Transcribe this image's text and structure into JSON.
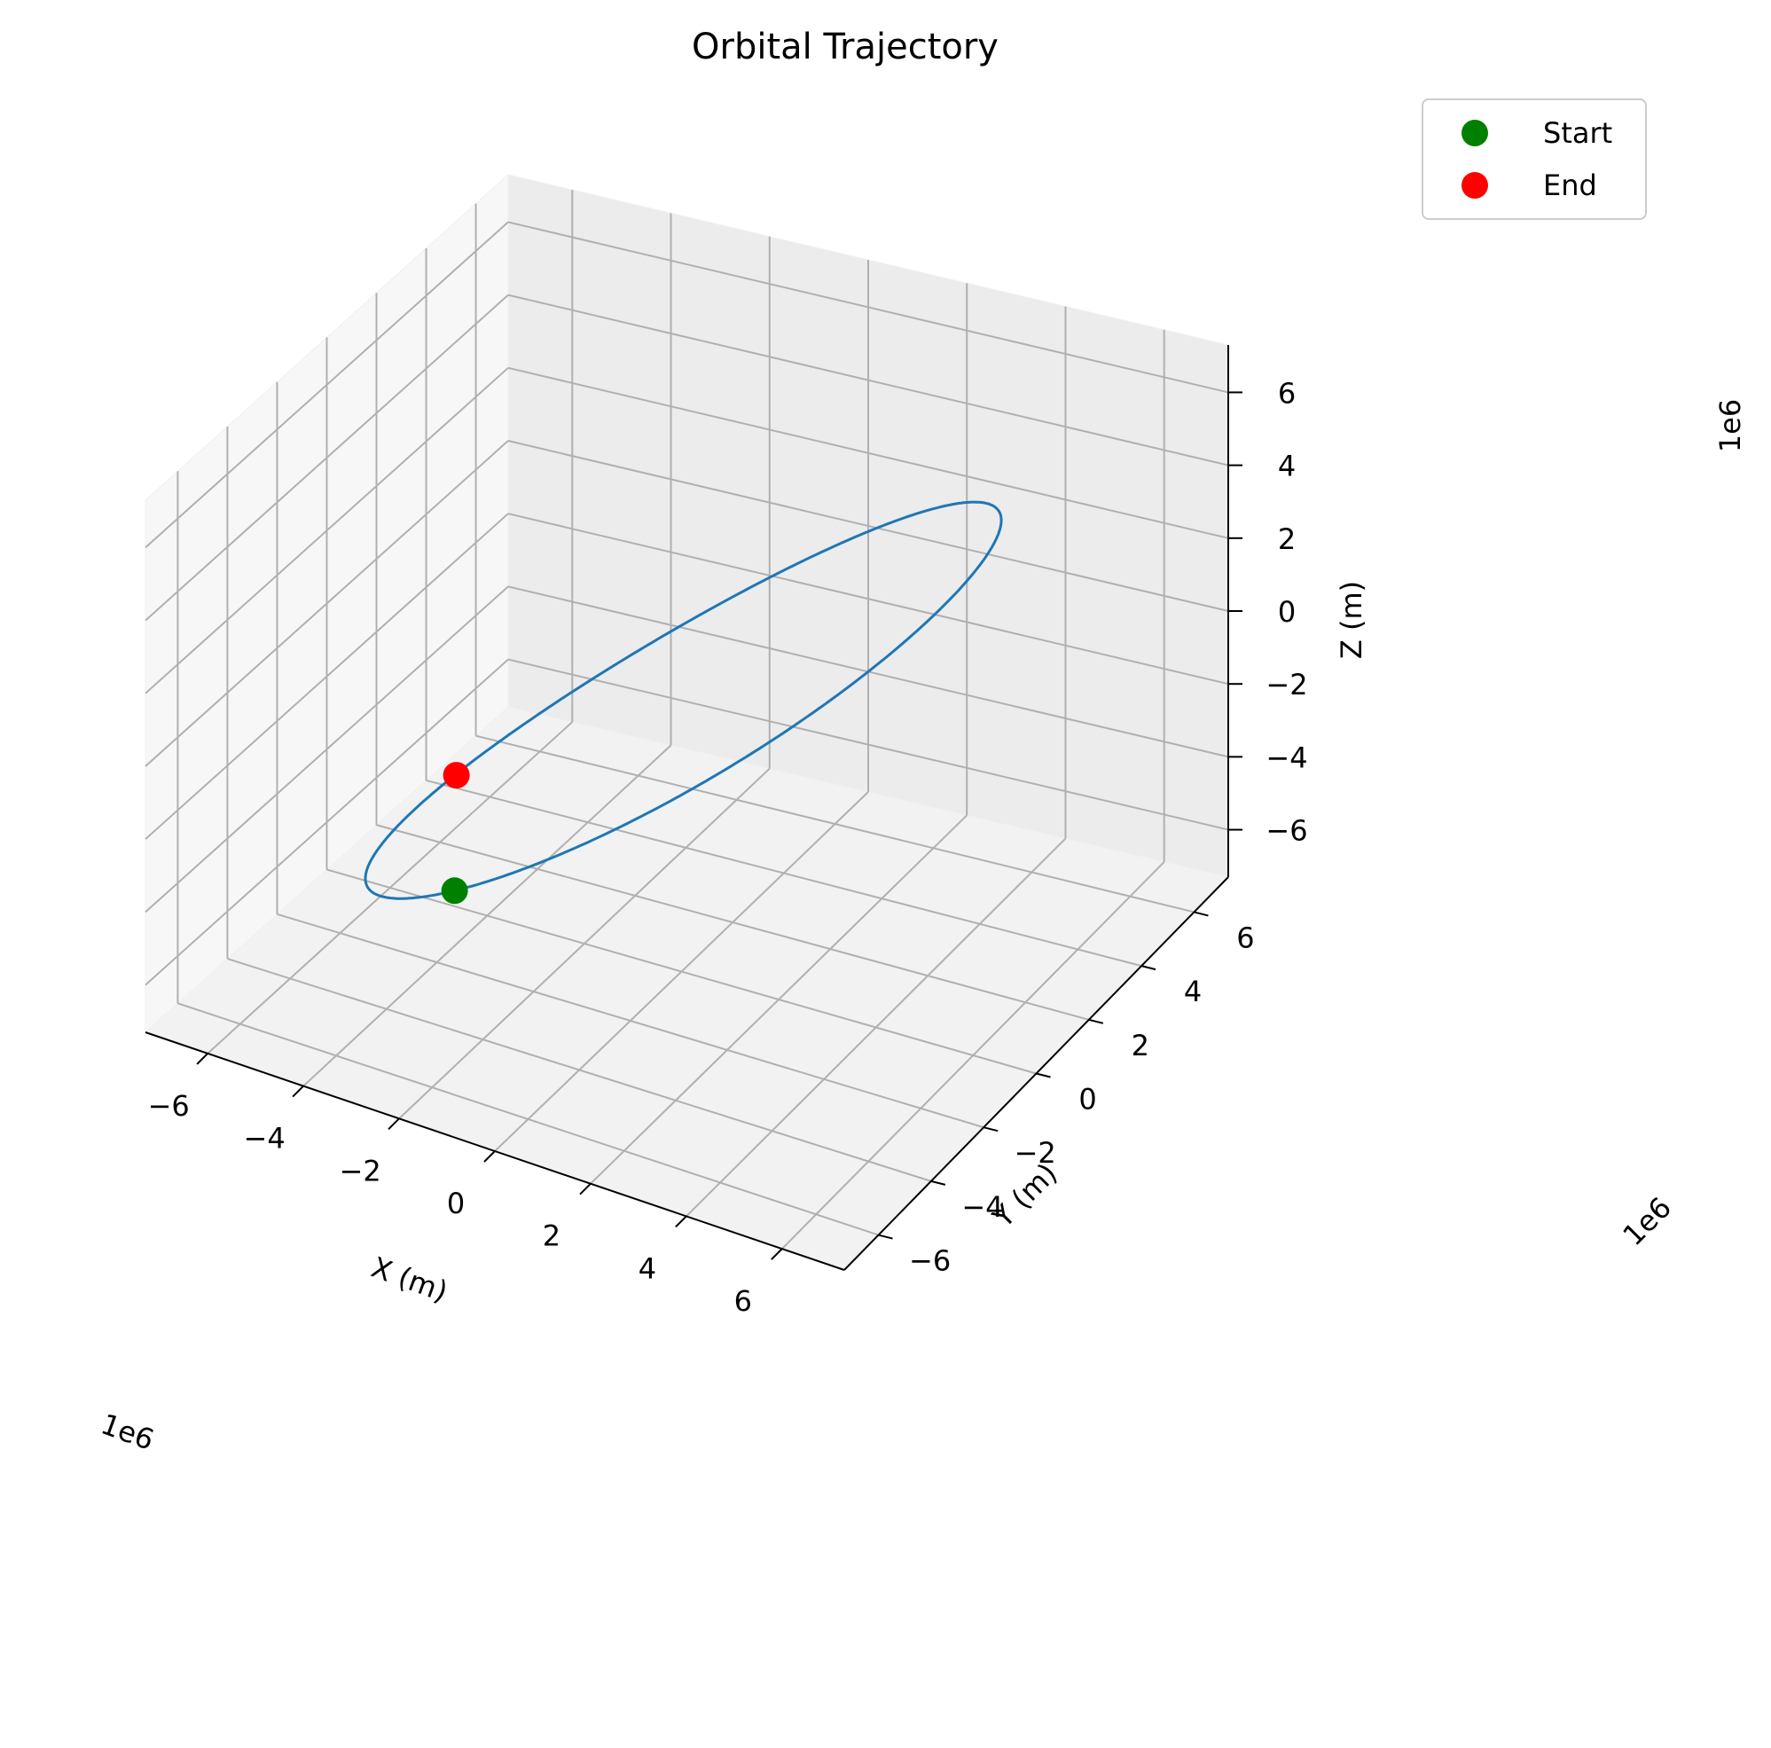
{
  "chart_data": {
    "type": "line3d",
    "title": "Orbital Trajectory",
    "xlabel": "X (m)",
    "ylabel": "Y (m)",
    "zlabel": "Z (m)",
    "x_offset_label": "1e6",
    "y_offset_label": "1e6",
    "z_offset_label": "1e6",
    "x_ticks": [
      {
        "v": -6,
        "t": "−6"
      },
      {
        "v": -4,
        "t": "−4"
      },
      {
        "v": -2,
        "t": "−2"
      },
      {
        "v": 0,
        "t": "0"
      },
      {
        "v": 2,
        "t": "2"
      },
      {
        "v": 4,
        "t": "4"
      },
      {
        "v": 6,
        "t": "6"
      }
    ],
    "y_ticks": [
      {
        "v": -6,
        "t": "−6"
      },
      {
        "v": -4,
        "t": "−4"
      },
      {
        "v": -2,
        "t": "−2"
      },
      {
        "v": 0,
        "t": "0"
      },
      {
        "v": 2,
        "t": "2"
      },
      {
        "v": 4,
        "t": "4"
      },
      {
        "v": 6,
        "t": "6"
      }
    ],
    "z_ticks": [
      {
        "v": -6,
        "t": "−6"
      },
      {
        "v": -4,
        "t": "−4"
      },
      {
        "v": -2,
        "t": "−2"
      },
      {
        "v": 0,
        "t": "0"
      },
      {
        "v": 2,
        "t": "2"
      },
      {
        "v": 4,
        "t": "4"
      },
      {
        "v": 6,
        "t": "6"
      }
    ],
    "xlim": [
      -7.3,
      7.3
    ],
    "ylim": [
      -7.3,
      7.3
    ],
    "zlim": [
      -7.3,
      7.3
    ],
    "units_scale": "1e6",
    "grid": true,
    "legend_position": "top-right",
    "legend": [
      {
        "label": "Start",
        "color": "#008000"
      },
      {
        "label": "End",
        "color": "#ff0000"
      }
    ],
    "orbit": {
      "color": "#1f77b4",
      "shape": "circular, inclined",
      "start_point": {
        "x": -1.0,
        "y": -7.0,
        "z": -0.8
      },
      "end_point": {
        "x": -5.2,
        "y": 1.1,
        "z": -4.6
      }
    }
  }
}
